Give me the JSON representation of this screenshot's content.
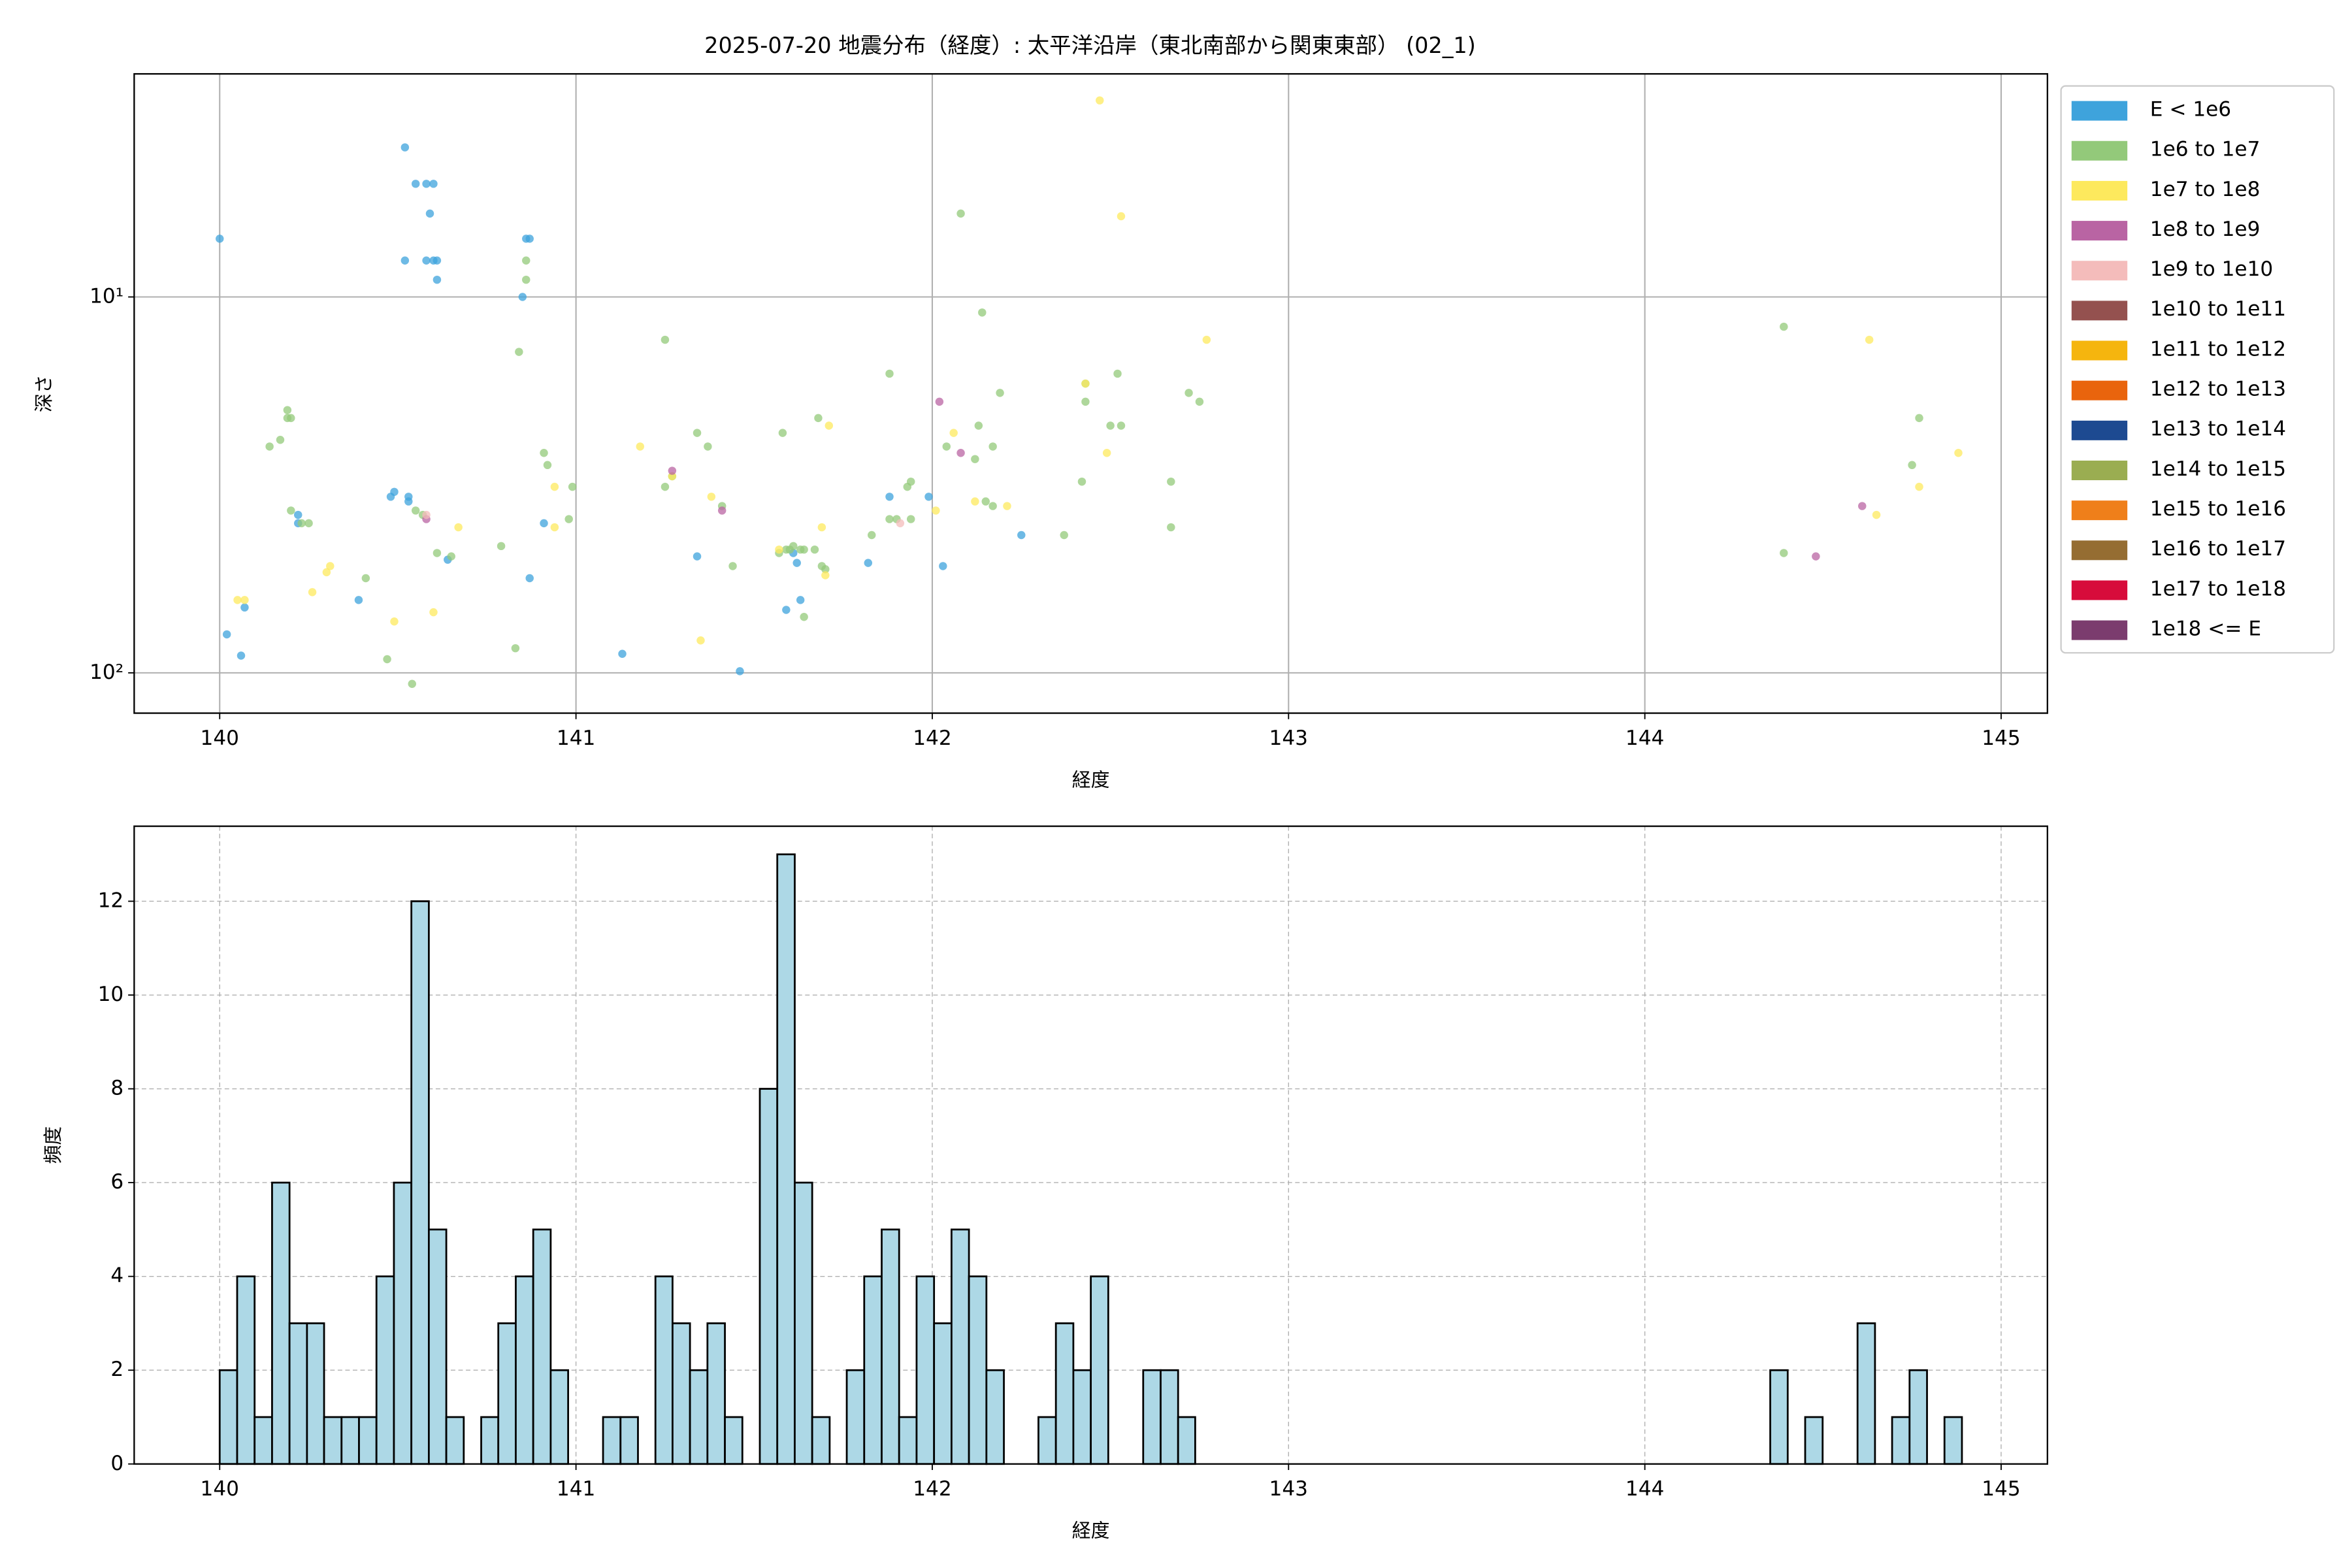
{
  "chart_data": [
    {
      "type": "scatter",
      "title": "2025-07-20 地震分布（経度）: 太平洋沿岸（東北南部から関東東部） (02_1)",
      "xlabel": "経度",
      "ylabel": "深さ",
      "xlim": [
        139.76,
        145.13
      ],
      "ylim": [
        128,
        2.55
      ],
      "log_y": true,
      "grid": true,
      "legend": "outside upper right",
      "xticks": [
        140,
        141,
        142,
        143,
        144,
        145
      ],
      "yticks": [
        {
          "value": 10,
          "label": "10¹"
        },
        {
          "value": 100,
          "label": "10²"
        }
      ],
      "series": [
        {
          "name": "E < 1e6",
          "color": "#3ea3dc",
          "x": [
            140.0,
            140.02,
            140.06,
            140.07,
            140.22,
            140.22,
            140.39,
            140.48,
            140.49,
            140.52,
            140.52,
            140.55,
            140.53,
            140.53,
            140.58,
            140.6,
            140.59,
            140.58,
            140.6,
            140.61,
            140.61,
            140.64,
            140.86,
            140.87,
            140.85,
            140.87,
            140.91,
            141.13,
            141.34,
            141.46,
            141.59,
            141.62,
            141.61,
            141.63,
            141.82,
            141.88,
            141.99,
            142.03,
            142.25
          ],
          "values": [
            7,
            79,
            90,
            67,
            40,
            38,
            64,
            34,
            33,
            4,
            8,
            5,
            35,
            34,
            5,
            5,
            6,
            8,
            8,
            8,
            9,
            50,
            7,
            7,
            10,
            56,
            40,
            89,
            49,
            99,
            68,
            51,
            48,
            64,
            51,
            34,
            34,
            52,
            43
          ]
        },
        {
          "name": "1e6 to 1e7",
          "color": "#93c97a",
          "x": [
            140.14,
            140.17,
            140.19,
            140.19,
            140.2,
            140.2,
            140.25,
            140.23,
            140.47,
            140.41,
            140.54,
            140.55,
            140.57,
            140.61,
            140.65,
            140.79,
            140.83,
            140.84,
            140.86,
            140.86,
            140.91,
            140.92,
            140.98,
            140.99,
            141.25,
            141.25,
            141.27,
            141.34,
            141.37,
            141.41,
            141.44,
            141.58,
            141.57,
            141.59,
            141.6,
            141.61,
            141.63,
            141.64,
            141.64,
            141.67,
            141.68,
            141.69,
            141.7,
            141.83,
            141.88,
            141.88,
            141.9,
            141.93,
            141.94,
            141.94,
            142.04,
            142.08,
            142.12,
            142.13,
            142.14,
            142.15,
            142.17,
            142.17,
            142.19,
            142.37,
            142.42,
            142.43,
            142.43,
            142.5,
            142.52,
            142.53,
            142.67,
            142.67,
            142.72,
            142.75,
            144.39,
            144.39,
            144.77,
            144.75
          ],
          "values": [
            25,
            24,
            21,
            20,
            21,
            37,
            40,
            40,
            92,
            56,
            107,
            37,
            38,
            48,
            49,
            46,
            86,
            14,
            8,
            9,
            26,
            28,
            39,
            32,
            13,
            32,
            30,
            23,
            25,
            36,
            52,
            23,
            48,
            47,
            47,
            46,
            47,
            71,
            47,
            47,
            21,
            52,
            53,
            43,
            16,
            39,
            39,
            32,
            31,
            39,
            25,
            6,
            27,
            22,
            11,
            35,
            36,
            25,
            18,
            43,
            31,
            19,
            17,
            22,
            16,
            22,
            31,
            41,
            18,
            19,
            12,
            48,
            21,
            28
          ]
        },
        {
          "name": "1e7 to 1e8",
          "color": "#fde95d",
          "x": [
            140.05,
            140.07,
            140.26,
            140.3,
            140.31,
            140.49,
            140.6,
            140.67,
            140.94,
            140.94,
            141.18,
            141.27,
            141.35,
            141.38,
            141.57,
            141.69,
            141.7,
            141.71,
            142.01,
            142.06,
            142.12,
            142.21,
            142.43,
            142.47,
            142.49,
            142.53,
            142.77,
            144.63,
            144.65,
            144.77,
            144.88
          ],
          "values": [
            64,
            64,
            61,
            54,
            52,
            73,
            69,
            41,
            32,
            41,
            25,
            30,
            82,
            34,
            47,
            41,
            55,
            22,
            37,
            23,
            35,
            36,
            17,
            3,
            26,
            6.1,
            13,
            13,
            38,
            32,
            26
          ]
        },
        {
          "name": "1e8 to 1e9",
          "color": "#b964a3",
          "x": [
            140.58,
            141.27,
            141.41,
            142.02,
            142.08,
            144.48,
            144.61
          ],
          "values": [
            39,
            29,
            37,
            19,
            26,
            49,
            36
          ]
        },
        {
          "name": "1e9 to 1e10",
          "color": "#f4bcbb",
          "x": [
            140.58,
            141.91
          ],
          "values": [
            38,
            40
          ]
        },
        {
          "name": "1e10 to 1e11",
          "color": "#94514f",
          "x": [],
          "values": []
        },
        {
          "name": "1e11 to 1e12",
          "color": "#f5b50e",
          "x": [],
          "values": []
        },
        {
          "name": "1e12 to 1e13",
          "color": "#e9640d",
          "x": [],
          "values": []
        },
        {
          "name": "1e13 to 1e14",
          "color": "#1d4a91",
          "x": [],
          "values": []
        },
        {
          "name": "1e14 to 1e15",
          "color": "#9aad51",
          "x": [],
          "values": []
        },
        {
          "name": "1e15 to 1e16",
          "color": "#ef7f1a",
          "x": [],
          "values": []
        },
        {
          "name": "1e16 to 1e17",
          "color": "#956d32",
          "x": [],
          "values": []
        },
        {
          "name": "1e17 to 1e18",
          "color": "#d70c3b",
          "x": [],
          "values": []
        },
        {
          "name": "1e18 <= E",
          "color": "#7b3c6e",
          "x": [],
          "values": []
        }
      ]
    },
    {
      "type": "histogram",
      "xlabel": "経度",
      "ylabel": "頻度",
      "xlim": [
        139.76,
        145.13
      ],
      "ylim": [
        0,
        13.6
      ],
      "grid": true,
      "grid_style": "dashed",
      "color": "#add8e6",
      "edgecolor": "#000000",
      "xticks": [
        140,
        141,
        142,
        143,
        144,
        145
      ],
      "yticks": [
        0,
        2,
        4,
        6,
        8,
        10,
        12
      ],
      "bins": [
        140.0,
        140.049,
        140.098,
        140.147,
        140.196,
        140.245,
        140.293,
        140.342,
        140.391,
        140.44,
        140.489,
        140.538,
        140.587,
        140.636,
        140.685,
        140.734,
        140.782,
        140.831,
        140.88,
        140.929,
        140.978,
        141.027,
        141.076,
        141.125,
        141.174,
        141.223,
        141.271,
        141.32,
        141.369,
        141.418,
        141.467,
        141.516,
        141.565,
        141.614,
        141.663,
        141.712,
        141.76,
        141.809,
        141.858,
        141.907,
        141.956,
        142.005,
        142.054,
        142.103,
        142.152,
        142.201,
        142.249,
        142.298,
        142.347,
        142.396,
        142.445,
        142.494,
        142.543,
        142.592,
        142.641,
        142.69,
        142.738,
        142.787,
        142.836,
        142.885,
        142.934,
        142.983,
        143.032,
        143.081,
        143.13,
        143.179,
        143.227,
        143.276,
        143.325,
        143.374,
        143.423,
        143.472,
        143.521,
        143.57,
        143.619,
        143.668,
        143.716,
        143.765,
        143.814,
        143.863,
        143.912,
        143.961,
        144.01,
        144.059,
        144.108,
        144.157,
        144.205,
        144.254,
        144.303,
        144.352,
        144.401,
        144.45,
        144.499,
        144.548,
        144.597,
        144.646,
        144.694,
        144.743,
        144.792,
        144.841,
        144.89
      ],
      "values": [
        2,
        4,
        1,
        6,
        3,
        3,
        1,
        1,
        1,
        4,
        6,
        12,
        5,
        1,
        0,
        1,
        3,
        4,
        5,
        2,
        0,
        0,
        1,
        1,
        0,
        4,
        3,
        2,
        3,
        1,
        0,
        8,
        13,
        6,
        1,
        0,
        2,
        4,
        5,
        1,
        4,
        3,
        5,
        4,
        2,
        0,
        0,
        1,
        3,
        2,
        4,
        0,
        0,
        2,
        2,
        1,
        0,
        0,
        0,
        0,
        0,
        0,
        0,
        0,
        0,
        0,
        0,
        0,
        0,
        0,
        0,
        0,
        0,
        0,
        0,
        0,
        0,
        0,
        0,
        0,
        0,
        0,
        0,
        0,
        0,
        0,
        0,
        0,
        0,
        2,
        0,
        1,
        0,
        0,
        3,
        0,
        1,
        2,
        0,
        1
      ]
    }
  ]
}
